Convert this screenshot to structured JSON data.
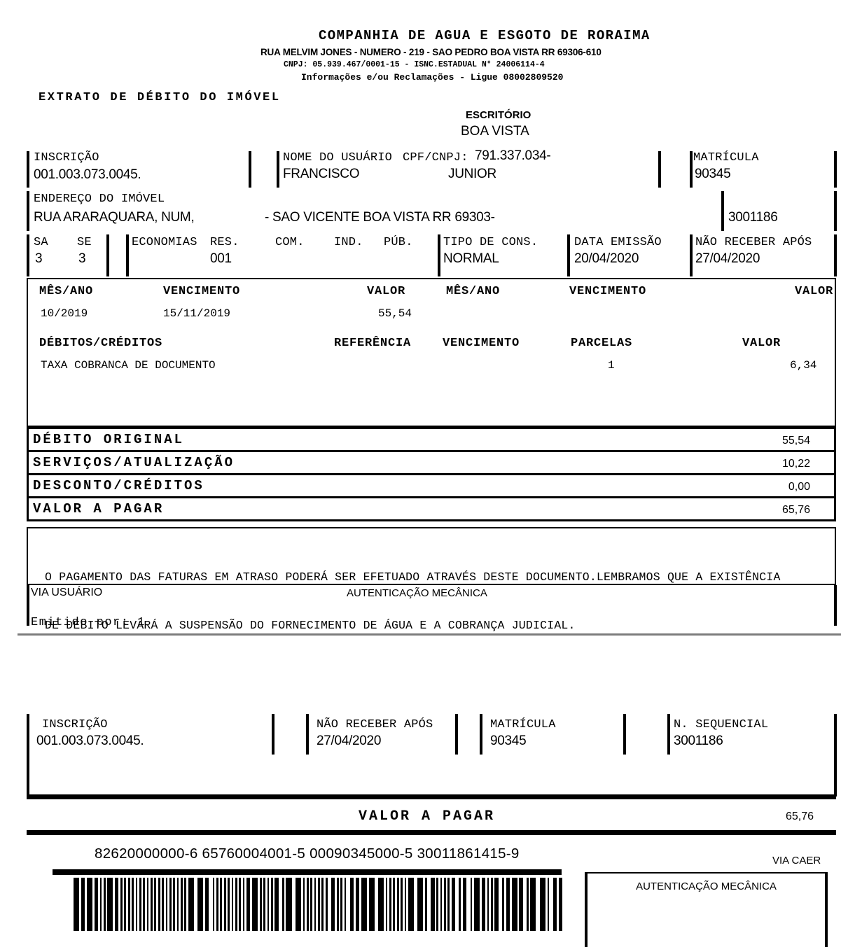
{
  "header": {
    "company": "COMPANHIA DE AGUA E ESGOTO DE RORAIMA",
    "address": "RUA MELVIM JONES - NUMERO - 219 - SAO PEDRO BOA VISTA RR 69306-610",
    "cnpj_line": "CNPJ: 05.939.467/0001-15 - ISNC.ESTADUAL N° 24006114-4",
    "info_line": "Informações e/ou Reclamações - Ligue 08002809520"
  },
  "title": "EXTRATO DE DÉBITO DO IMÓVEL",
  "office": {
    "label": "ESCRITÓRIO",
    "value": "BOA VISTA"
  },
  "property": {
    "inscricao": {
      "label": "INSCRIÇÃO",
      "value": "001.003.073.0045."
    },
    "usuario": {
      "label": "NOME DO USUÁRIO",
      "cpf_label": "CPF/CNPJ:",
      "cpf_value": "791.337.034-",
      "first_name": "FRANCISCO",
      "last_name": "JUNIOR"
    },
    "matricula": {
      "label": "MATRÍCULA",
      "value": "90345"
    },
    "endereco": {
      "label": "ENDEREÇO DO IMÓVEL",
      "street": "RUA ARARAQUARA, NUM,",
      "district": "- SAO VICENTE BOA VISTA RR 69303-",
      "sequencial": "3001186"
    },
    "sa": {
      "label": "SA",
      "value": "3"
    },
    "se": {
      "label": "SE",
      "value": "3"
    },
    "economias": {
      "label": "ECONOMIAS",
      "res_label": "RES.",
      "com_label": "COM.",
      "ind_label": "IND.",
      "pub_label": "PÚB.",
      "res_value": "001"
    },
    "tipo_cons": {
      "label": "TIPO DE CONS.",
      "value": "NORMAL"
    },
    "data_emissao": {
      "label": "DATA EMISSÃO",
      "value": "20/04/2020"
    },
    "nao_receber": {
      "label": "NÃO RECEBER APÓS",
      "value": "27/04/2020"
    }
  },
  "debitos_mensais": {
    "headers": [
      "MÊS/ANO",
      "VENCIMENTO",
      "VALOR",
      "MÊS/ANO",
      "VENCIMENTO",
      "VALOR"
    ],
    "row": {
      "mes_ano": "10/2019",
      "vencimento": "15/11/2019",
      "valor": "55,54"
    }
  },
  "debitos_creditos": {
    "headers": [
      "DÉBITOS/CRÉDITOS",
      "REFERÊNCIA",
      "VENCIMENTO",
      "PARCELAS",
      "VALOR"
    ],
    "row": {
      "descricao": "TAXA COBRANCA DE DOCUMENTO",
      "parcelas": "1",
      "valor": "6,34"
    }
  },
  "totals": [
    {
      "label": "DÉBITO ORIGINAL",
      "value": "55,54"
    },
    {
      "label": "SERVIÇOS/ATUALIZAÇÃO",
      "value": "10,22"
    },
    {
      "label": "DESCONTO/CRÉDITOS",
      "value": "0,00"
    },
    {
      "label": "VALOR A PAGAR",
      "value": "65,76"
    }
  ],
  "notice": {
    "line1": "O PAGAMENTO DAS FATURAS EM ATRASO PODERÁ SER EFETUADO ATRAVÉS DESTE DOCUMENTO.LEMBRAMOS QUE A EXISTÊNCIA",
    "line2": "DE DÉBITO LEVARÁ A SUSPENSÃO DO FORNECIMENTO DE ÁGUA E A COBRANÇA JUDICIAL."
  },
  "via_section": {
    "via_label": "VIA USUÁRIO",
    "autenticacao_label": "AUTENTICAÇÃO MECÂNICA",
    "emitido_por": "Emitido por: 1"
  },
  "stub": {
    "inscricao": {
      "label": "INSCRIÇÃO",
      "value": "001.003.073.0045."
    },
    "nao_receber": {
      "label": "NÃO RECEBER APÓS",
      "value": "27/04/2020"
    },
    "matricula": {
      "label": "MATRÍCULA",
      "value": "90345"
    },
    "sequencial": {
      "label": "N. SEQUENCIAL",
      "value": "3001186"
    }
  },
  "payment": {
    "valor_label": "VALOR A PAGAR",
    "valor_value": "65,76"
  },
  "barcode": {
    "text": "82620000000-6 65760004001-5 00090345000-5 30011861415-9",
    "via_label": "VIA CAER",
    "autenticacao_label": "AUTENTICAÇÃO MECÂNICA"
  }
}
